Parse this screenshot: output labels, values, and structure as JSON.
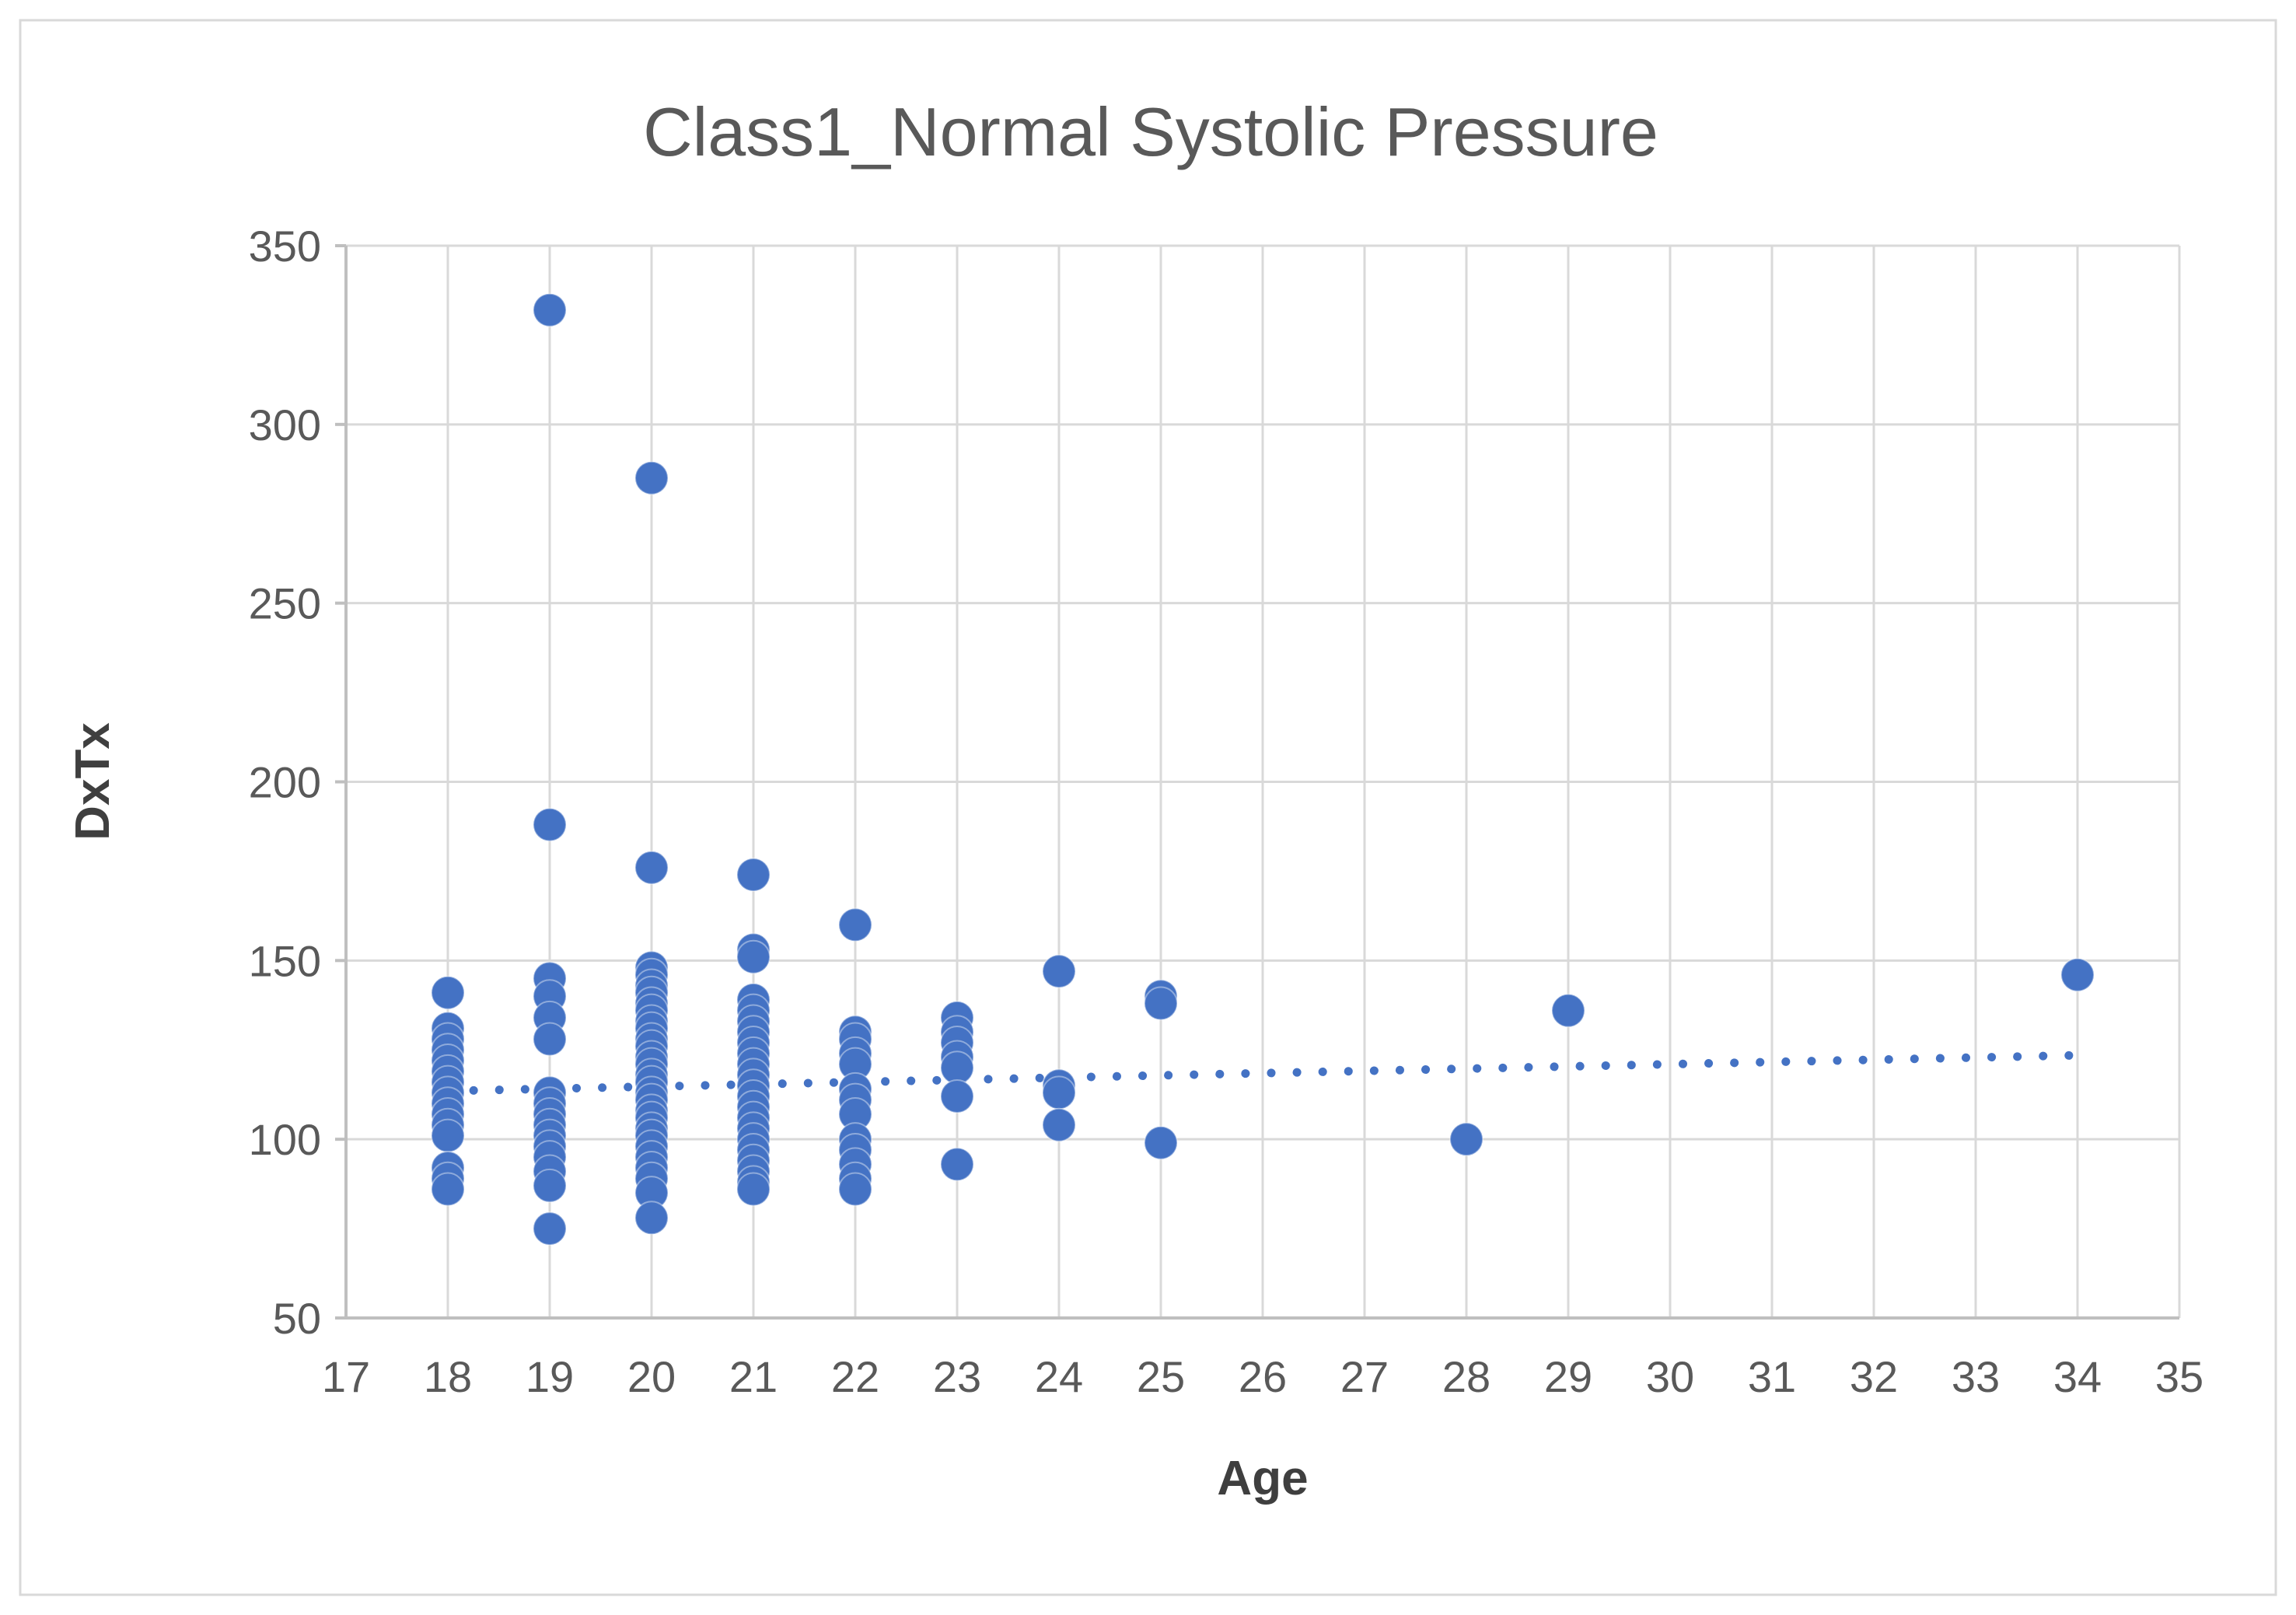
{
  "chart": {
    "title": "Class1_Normal Systolic Pressure",
    "xlabel": "Age",
    "ylabel": "DxTx"
  },
  "chart_data": {
    "type": "scatter",
    "title": "Class1_Normal Systolic Pressure",
    "xlabel": "Age",
    "ylabel": "DxTx",
    "xlim": [
      17,
      35
    ],
    "ylim": [
      50,
      350
    ],
    "x_ticks": [
      17,
      18,
      19,
      20,
      21,
      22,
      23,
      24,
      25,
      26,
      27,
      28,
      29,
      30,
      31,
      32,
      33,
      34,
      35
    ],
    "y_ticks": [
      50,
      100,
      150,
      200,
      250,
      300,
      350
    ],
    "grid": true,
    "legend": "none",
    "marker_color": "#4472C4",
    "grid_color": "#D9D9D9",
    "axis_line_color": "#BFBFBF",
    "text_color": "#595959",
    "axis_title_color": "#3F3F3F",
    "border_color": "#D9D9D9",
    "series": [
      {
        "name": "DxTx",
        "points": [
          [
            18,
            141
          ],
          [
            18,
            131
          ],
          [
            18,
            128
          ],
          [
            18,
            125
          ],
          [
            18,
            122
          ],
          [
            18,
            119
          ],
          [
            18,
            116
          ],
          [
            18,
            113
          ],
          [
            18,
            110
          ],
          [
            18,
            107
          ],
          [
            18,
            104
          ],
          [
            18,
            101
          ],
          [
            18,
            92
          ],
          [
            18,
            89
          ],
          [
            18,
            86
          ],
          [
            19,
            332
          ],
          [
            19,
            188
          ],
          [
            19,
            145
          ],
          [
            19,
            140
          ],
          [
            19,
            134
          ],
          [
            19,
            128
          ],
          [
            19,
            113
          ],
          [
            19,
            110
          ],
          [
            19,
            107
          ],
          [
            19,
            104
          ],
          [
            19,
            101
          ],
          [
            19,
            98
          ],
          [
            19,
            95
          ],
          [
            19,
            91
          ],
          [
            19,
            87
          ],
          [
            19,
            75
          ],
          [
            20,
            285
          ],
          [
            20,
            176
          ],
          [
            20,
            148
          ],
          [
            20,
            146
          ],
          [
            20,
            143
          ],
          [
            20,
            141
          ],
          [
            20,
            138
          ],
          [
            20,
            136
          ],
          [
            20,
            133
          ],
          [
            20,
            131
          ],
          [
            20,
            128
          ],
          [
            20,
            126
          ],
          [
            20,
            123
          ],
          [
            20,
            121
          ],
          [
            20,
            118
          ],
          [
            20,
            116
          ],
          [
            20,
            113
          ],
          [
            20,
            111
          ],
          [
            20,
            108
          ],
          [
            20,
            106
          ],
          [
            20,
            103
          ],
          [
            20,
            101
          ],
          [
            20,
            98
          ],
          [
            20,
            95
          ],
          [
            20,
            92
          ],
          [
            20,
            89
          ],
          [
            20,
            85
          ],
          [
            20,
            78
          ],
          [
            21,
            174
          ],
          [
            21,
            153
          ],
          [
            21,
            151
          ],
          [
            21,
            139
          ],
          [
            21,
            136
          ],
          [
            21,
            133
          ],
          [
            21,
            130
          ],
          [
            21,
            127
          ],
          [
            21,
            124
          ],
          [
            21,
            121
          ],
          [
            21,
            118
          ],
          [
            21,
            115
          ],
          [
            21,
            112
          ],
          [
            21,
            109
          ],
          [
            21,
            106
          ],
          [
            21,
            103
          ],
          [
            21,
            100
          ],
          [
            21,
            97
          ],
          [
            21,
            94
          ],
          [
            21,
            91
          ],
          [
            21,
            88
          ],
          [
            21,
            86
          ],
          [
            22,
            160
          ],
          [
            22,
            130
          ],
          [
            22,
            128
          ],
          [
            22,
            124
          ],
          [
            22,
            121
          ],
          [
            22,
            114
          ],
          [
            22,
            111
          ],
          [
            22,
            107
          ],
          [
            22,
            100
          ],
          [
            22,
            97
          ],
          [
            22,
            93
          ],
          [
            22,
            89
          ],
          [
            22,
            86
          ],
          [
            23,
            134
          ],
          [
            23,
            130
          ],
          [
            23,
            127
          ],
          [
            23,
            123
          ],
          [
            23,
            120
          ],
          [
            23,
            112
          ],
          [
            23,
            93
          ],
          [
            24,
            147
          ],
          [
            24,
            115
          ],
          [
            24,
            113
          ],
          [
            24,
            104
          ],
          [
            25,
            140
          ],
          [
            25,
            138
          ],
          [
            25,
            99
          ],
          [
            28,
            100
          ],
          [
            29,
            136
          ],
          [
            34,
            146
          ]
        ]
      }
    ],
    "trendline": {
      "style": "dotted",
      "color": "#4472C4",
      "x_start": 18,
      "y_start": 113.5,
      "x_end": 34,
      "y_end": 123.5
    }
  }
}
